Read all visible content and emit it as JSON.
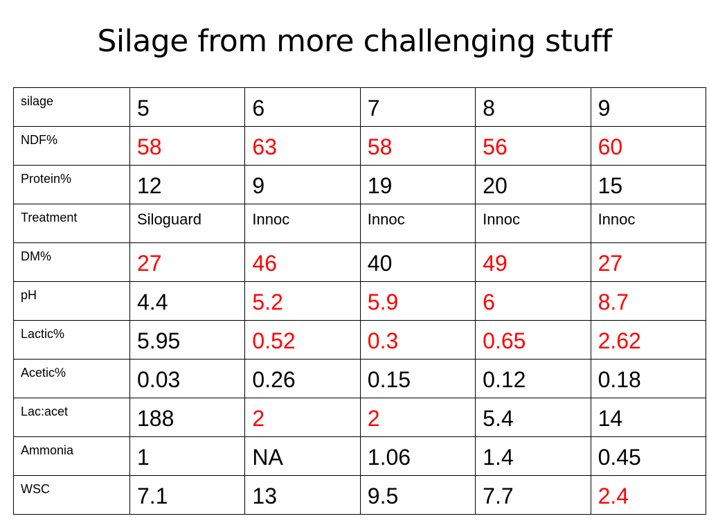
{
  "title": "Silage from more challenging stuff",
  "colors": {
    "highlight": "#ff0000",
    "normal": "#000000"
  },
  "rows": [
    {
      "label": "silage",
      "small": false,
      "cells": [
        {
          "v": "5",
          "red": false
        },
        {
          "v": "6",
          "red": false
        },
        {
          "v": "7",
          "red": false
        },
        {
          "v": "8",
          "red": false
        },
        {
          "v": "9",
          "red": false
        }
      ]
    },
    {
      "label": "NDF%",
      "small": false,
      "cells": [
        {
          "v": "58",
          "red": true
        },
        {
          "v": "63",
          "red": true
        },
        {
          "v": "58",
          "red": true
        },
        {
          "v": "56",
          "red": true
        },
        {
          "v": "60",
          "red": true
        }
      ]
    },
    {
      "label": "Protein%",
      "small": false,
      "cells": [
        {
          "v": "12",
          "red": false
        },
        {
          "v": "9",
          "red": false
        },
        {
          "v": "19",
          "red": false
        },
        {
          "v": "20",
          "red": false
        },
        {
          "v": "15",
          "red": false
        }
      ]
    },
    {
      "label": "Treatment",
      "small": true,
      "cells": [
        {
          "v": "Siloguard",
          "red": false
        },
        {
          "v": "Innoc",
          "red": false
        },
        {
          "v": "Innoc",
          "red": false
        },
        {
          "v": "Innoc",
          "red": false
        },
        {
          "v": "Innoc",
          "red": false
        }
      ]
    },
    {
      "label": "DM%",
      "small": false,
      "cells": [
        {
          "v": "27",
          "red": true
        },
        {
          "v": "46",
          "red": true
        },
        {
          "v": "40",
          "red": false
        },
        {
          "v": "49",
          "red": true
        },
        {
          "v": "27",
          "red": true
        }
      ]
    },
    {
      "label": "pH",
      "small": false,
      "cells": [
        {
          "v": "4.4",
          "red": false
        },
        {
          "v": "5.2",
          "red": true
        },
        {
          "v": "5.9",
          "red": true
        },
        {
          "v": "6",
          "red": true
        },
        {
          "v": "8.7",
          "red": true
        }
      ]
    },
    {
      "label": "Lactic%",
      "small": false,
      "cells": [
        {
          "v": "5.95",
          "red": false
        },
        {
          "v": "0.52",
          "red": true
        },
        {
          "v": "0.3",
          "red": true
        },
        {
          "v": "0.65",
          "red": true
        },
        {
          "v": "2.62",
          "red": true
        }
      ]
    },
    {
      "label": "Acetic%",
      "small": false,
      "cells": [
        {
          "v": "0.03",
          "red": false
        },
        {
          "v": "0.26",
          "red": false
        },
        {
          "v": "0.15",
          "red": false
        },
        {
          "v": "0.12",
          "red": false
        },
        {
          "v": "0.18",
          "red": false
        }
      ]
    },
    {
      "label": "Lac:acet",
      "small": false,
      "cells": [
        {
          "v": "188",
          "red": false
        },
        {
          "v": "2",
          "red": true
        },
        {
          "v": "2",
          "red": true
        },
        {
          "v": "5.4",
          "red": false
        },
        {
          "v": "14",
          "red": false
        }
      ]
    },
    {
      "label": "Ammonia",
      "small": false,
      "cells": [
        {
          "v": "1",
          "red": false
        },
        {
          "v": "NA",
          "red": false
        },
        {
          "v": "1.06",
          "red": false
        },
        {
          "v": "1.4",
          "red": false
        },
        {
          "v": "0.45",
          "red": false
        }
      ]
    },
    {
      "label": "WSC",
      "small": false,
      "cells": [
        {
          "v": "7.1",
          "red": false
        },
        {
          "v": "13",
          "red": false
        },
        {
          "v": "9.5",
          "red": false
        },
        {
          "v": "7.7",
          "red": false
        },
        {
          "v": "2.4",
          "red": true
        }
      ]
    }
  ]
}
